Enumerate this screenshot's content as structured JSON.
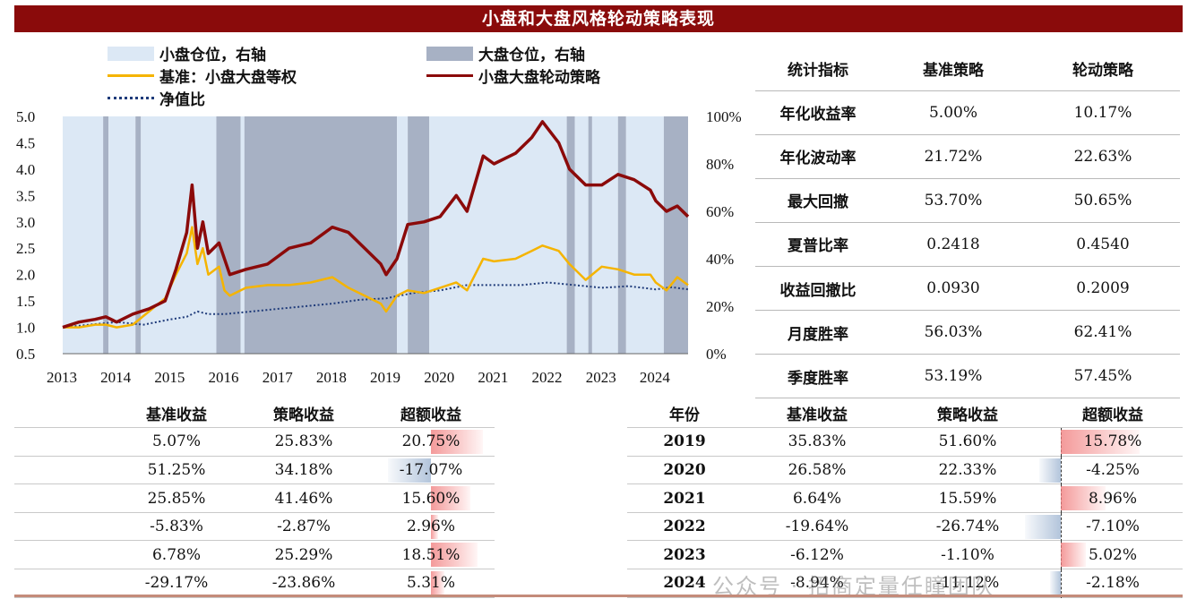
{
  "title": "小盘和大盘风格轮动策略表现",
  "colors": {
    "small_cap": "#dce8f5",
    "large_cap": "#a7b1c4",
    "benchmark": "#f5b400",
    "strategy": "#8b0a0a",
    "nav_ratio": "#1f3b7a"
  },
  "legend": {
    "small_pos": "小盘仓位，右轴",
    "large_pos": "大盘仓位，右轴",
    "benchmark": "基准：小盘大盘等权",
    "strategy": "小盘大盘轮动策略",
    "nav_ratio": "净值比"
  },
  "chart_data": {
    "type": "line",
    "x_ticks": [
      "2013",
      "2014",
      "2015",
      "2016",
      "2017",
      "2018",
      "2019",
      "2020",
      "2021",
      "2022",
      "2023",
      "2024"
    ],
    "y_left_ticks": [
      "5.0",
      "4.5",
      "4.0",
      "3.5",
      "3.0",
      "2.5",
      "2.0",
      "1.5",
      "1.0",
      "0.5"
    ],
    "y_right_ticks": [
      "100%",
      "80%",
      "60%",
      "40%",
      "20%",
      "0%"
    ],
    "ylim_left": [
      0.5,
      5.0
    ],
    "ylim_right": [
      0,
      1
    ],
    "xlim": [
      2013.0,
      2024.6
    ],
    "position_periods": [
      {
        "from": 2013.0,
        "to": 2013.75,
        "value": "small"
      },
      {
        "from": 2013.75,
        "to": 2013.85,
        "value": "large"
      },
      {
        "from": 2013.85,
        "to": 2014.35,
        "value": "small"
      },
      {
        "from": 2014.35,
        "to": 2014.45,
        "value": "large"
      },
      {
        "from": 2014.45,
        "to": 2015.85,
        "value": "small"
      },
      {
        "from": 2015.85,
        "to": 2016.3,
        "value": "large"
      },
      {
        "from": 2016.3,
        "to": 2016.37,
        "value": "small"
      },
      {
        "from": 2016.37,
        "to": 2019.2,
        "value": "large"
      },
      {
        "from": 2019.2,
        "to": 2019.4,
        "value": "small"
      },
      {
        "from": 2019.4,
        "to": 2019.8,
        "value": "large"
      },
      {
        "from": 2019.8,
        "to": 2022.35,
        "value": "small"
      },
      {
        "from": 2022.35,
        "to": 2022.5,
        "value": "large"
      },
      {
        "from": 2022.5,
        "to": 2022.75,
        "value": "small"
      },
      {
        "from": 2022.75,
        "to": 2022.82,
        "value": "large"
      },
      {
        "from": 2022.82,
        "to": 2023.3,
        "value": "small"
      },
      {
        "from": 2023.3,
        "to": 2023.45,
        "value": "large"
      },
      {
        "from": 2023.45,
        "to": 2024.15,
        "value": "small"
      },
      {
        "from": 2024.15,
        "to": 2024.6,
        "value": "large"
      }
    ],
    "series": [
      {
        "name": "基准：小盘大盘等权",
        "x": [
          2013.0,
          2013.3,
          2013.6,
          2013.8,
          2014.0,
          2014.3,
          2014.6,
          2014.9,
          2015.1,
          2015.3,
          2015.4,
          2015.5,
          2015.6,
          2015.7,
          2015.9,
          2016.0,
          2016.1,
          2016.4,
          2016.8,
          2017.2,
          2017.6,
          2018.0,
          2018.3,
          2018.6,
          2018.9,
          2019.0,
          2019.2,
          2019.4,
          2019.7,
          2020.0,
          2020.3,
          2020.5,
          2020.8,
          2021.0,
          2021.4,
          2021.7,
          2021.9,
          2022.2,
          2022.4,
          2022.7,
          2023.0,
          2023.3,
          2023.6,
          2023.9,
          2024.0,
          2024.2,
          2024.4,
          2024.6
        ],
        "y": [
          1.0,
          1.0,
          1.05,
          1.05,
          1.0,
          1.05,
          1.3,
          1.55,
          2.0,
          2.4,
          2.9,
          2.2,
          2.5,
          2.0,
          2.15,
          1.7,
          1.6,
          1.75,
          1.8,
          1.8,
          1.85,
          1.95,
          1.75,
          1.6,
          1.45,
          1.3,
          1.6,
          1.7,
          1.65,
          1.75,
          1.85,
          1.7,
          2.3,
          2.25,
          2.3,
          2.45,
          2.55,
          2.45,
          2.2,
          1.9,
          2.15,
          2.1,
          2.0,
          2.0,
          1.85,
          1.7,
          1.95,
          1.8
        ]
      },
      {
        "name": "小盘大盘轮动策略",
        "x": [
          2013.0,
          2013.3,
          2013.6,
          2013.8,
          2014.0,
          2014.3,
          2014.6,
          2014.9,
          2015.1,
          2015.3,
          2015.4,
          2015.5,
          2015.6,
          2015.7,
          2015.9,
          2016.0,
          2016.1,
          2016.4,
          2016.8,
          2017.2,
          2017.6,
          2018.0,
          2018.3,
          2018.6,
          2018.9,
          2019.0,
          2019.2,
          2019.4,
          2019.7,
          2020.0,
          2020.3,
          2020.5,
          2020.8,
          2021.0,
          2021.4,
          2021.7,
          2021.9,
          2022.2,
          2022.4,
          2022.7,
          2023.0,
          2023.3,
          2023.6,
          2023.9,
          2024.0,
          2024.2,
          2024.4,
          2024.6
        ],
        "y": [
          1.0,
          1.1,
          1.15,
          1.2,
          1.1,
          1.25,
          1.35,
          1.5,
          2.1,
          2.8,
          3.7,
          2.5,
          3.0,
          2.4,
          2.6,
          2.3,
          2.0,
          2.1,
          2.2,
          2.5,
          2.6,
          2.9,
          2.8,
          2.5,
          2.2,
          2.0,
          2.3,
          2.95,
          3.0,
          3.1,
          3.5,
          3.2,
          4.25,
          4.1,
          4.3,
          4.6,
          4.9,
          4.5,
          4.0,
          3.7,
          3.7,
          3.9,
          3.8,
          3.6,
          3.4,
          3.2,
          3.3,
          3.1
        ]
      },
      {
        "name": "净值比",
        "x": [
          2013.0,
          2013.5,
          2014.0,
          2014.5,
          2015.0,
          2015.3,
          2015.5,
          2015.7,
          2016.0,
          2016.5,
          2017.0,
          2017.5,
          2018.0,
          2018.5,
          2019.0,
          2019.5,
          2020.0,
          2020.5,
          2021.0,
          2021.5,
          2022.0,
          2022.5,
          2023.0,
          2023.5,
          2024.0,
          2024.3,
          2024.6
        ],
        "y": [
          1.0,
          1.05,
          1.1,
          1.05,
          1.15,
          1.2,
          1.3,
          1.25,
          1.25,
          1.3,
          1.35,
          1.4,
          1.45,
          1.52,
          1.55,
          1.65,
          1.7,
          1.8,
          1.8,
          1.8,
          1.85,
          1.8,
          1.75,
          1.78,
          1.72,
          1.76,
          1.72
        ]
      }
    ]
  },
  "stats_table": {
    "headers": [
      "统计指标",
      "基准策略",
      "轮动策略"
    ],
    "rows": [
      [
        "年化收益率",
        "5.00%",
        "10.17%"
      ],
      [
        "年化波动率",
        "21.72%",
        "22.63%"
      ],
      [
        "最大回撤",
        "53.70%",
        "50.65%"
      ],
      [
        "夏普比率",
        "0.2418",
        "0.4540"
      ],
      [
        "收益回撤比",
        "0.0930",
        "0.2009"
      ],
      [
        "月度胜率",
        "56.03%",
        "62.41%"
      ],
      [
        "季度胜率",
        "53.19%",
        "57.45%"
      ]
    ]
  },
  "left_table": {
    "headers": [
      "基准收益",
      "策略收益",
      "超额收益"
    ],
    "rows": [
      {
        "bench": "5.07%",
        "strat": "25.83%",
        "excess": "20.75%",
        "excess_value": 20.75
      },
      {
        "bench": "51.25%",
        "strat": "34.18%",
        "excess": "-17.07%",
        "excess_value": -17.07
      },
      {
        "bench": "25.85%",
        "strat": "41.46%",
        "excess": "15.60%",
        "excess_value": 15.6
      },
      {
        "bench": "-5.83%",
        "strat": "-2.87%",
        "excess": "2.96%",
        "excess_value": 2.96
      },
      {
        "bench": "6.78%",
        "strat": "25.29%",
        "excess": "18.51%",
        "excess_value": 18.51
      },
      {
        "bench": "-29.17%",
        "strat": "-23.86%",
        "excess": "5.31%",
        "excess_value": 5.31
      }
    ]
  },
  "right_table": {
    "headers": [
      "年份",
      "基准收益",
      "策略收益",
      "超额收益"
    ],
    "rows": [
      {
        "year": "2019",
        "bench": "35.83%",
        "strat": "51.60%",
        "excess": "15.78%",
        "excess_value": 15.78
      },
      {
        "year": "2020",
        "bench": "26.58%",
        "strat": "22.33%",
        "excess": "-4.25%",
        "excess_value": -4.25
      },
      {
        "year": "2021",
        "bench": "6.64%",
        "strat": "15.59%",
        "excess": "8.96%",
        "excess_value": 8.96
      },
      {
        "year": "2022",
        "bench": "-19.64%",
        "strat": "-26.74%",
        "excess": "-7.10%",
        "excess_value": -7.1
      },
      {
        "year": "2023",
        "bench": "-6.12%",
        "strat": "-1.10%",
        "excess": "5.02%",
        "excess_value": 5.02
      },
      {
        "year": "2024",
        "bench": "-8.94%",
        "strat": "-11.12%",
        "excess": "-2.18%",
        "excess_value": -2.18
      }
    ]
  },
  "watermark": "公众号 · 招商定量任瞳团队"
}
